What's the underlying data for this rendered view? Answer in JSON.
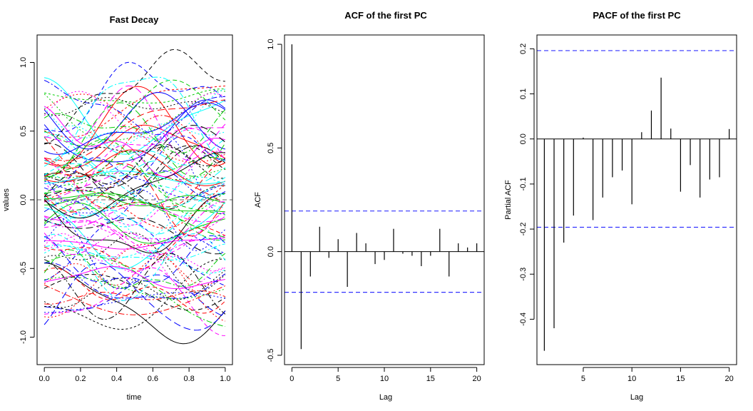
{
  "chart_data": [
    {
      "type": "line",
      "title": "Fast Decay",
      "xlabel": "time",
      "ylabel": "values",
      "xlim": [
        0.0,
        1.0
      ],
      "ylim": [
        -1.2,
        1.2
      ],
      "xticks": [
        "0.0",
        "0.2",
        "0.4",
        "0.6",
        "0.8",
        "1.0"
      ],
      "yticks": [
        "-1.0",
        "-0.5",
        "0.0",
        "0.5",
        "1.0"
      ],
      "reference_line": 0.0,
      "series_colors": [
        "#000000",
        "#ff0000",
        "#00cc00",
        "#0000ff",
        "#00ffff",
        "#ff00ff"
      ],
      "n_curves": 100,
      "curve_seed": 7
    },
    {
      "type": "bar",
      "title": "ACF of the first PC",
      "xlabel": "Lag",
      "ylabel": "ACF",
      "xlim": [
        0,
        20
      ],
      "ylim": [
        -0.5,
        1.0
      ],
      "xticks": [
        "0",
        "5",
        "10",
        "15",
        "20"
      ],
      "yticks": [
        "-0.5",
        "0.0",
        "0.5",
        "1.0"
      ],
      "lags": [
        0,
        1,
        2,
        3,
        4,
        5,
        6,
        7,
        8,
        9,
        10,
        11,
        12,
        13,
        14,
        15,
        16,
        17,
        18,
        19,
        20
      ],
      "values": [
        1.0,
        -0.47,
        -0.12,
        0.12,
        -0.03,
        0.06,
        -0.17,
        0.09,
        0.04,
        -0.06,
        -0.04,
        0.11,
        -0.01,
        -0.02,
        -0.07,
        -0.02,
        0.11,
        -0.12,
        0.04,
        0.02,
        0.04
      ],
      "ci": 0.196
    },
    {
      "type": "bar",
      "title": "PACF of the first PC",
      "xlabel": "Lag",
      "ylabel": "Partial ACF",
      "xlim": [
        1,
        20
      ],
      "ylim": [
        -0.48,
        0.21
      ],
      "xticks": [
        "5",
        "10",
        "15",
        "20"
      ],
      "yticks": [
        "-0.4",
        "-0.3",
        "-0.2",
        "-0.1",
        "0.0",
        "0.1",
        "0.2"
      ],
      "lags": [
        1,
        2,
        3,
        4,
        5,
        6,
        7,
        8,
        9,
        10,
        11,
        12,
        13,
        14,
        15,
        16,
        17,
        18,
        19,
        20
      ],
      "values": [
        -0.47,
        -0.42,
        -0.23,
        -0.17,
        0.003,
        -0.18,
        -0.13,
        -0.085,
        -0.07,
        -0.145,
        0.015,
        0.063,
        0.136,
        0.023,
        -0.117,
        -0.058,
        -0.13,
        -0.09,
        -0.085,
        0.022
      ],
      "ci": 0.196
    }
  ]
}
